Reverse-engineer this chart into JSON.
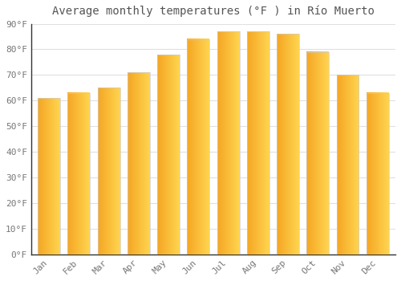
{
  "months": [
    "Jan",
    "Feb",
    "Mar",
    "Apr",
    "May",
    "Jun",
    "Jul",
    "Aug",
    "Sep",
    "Oct",
    "Nov",
    "Dec"
  ],
  "values": [
    61,
    63,
    65,
    71,
    78,
    84,
    87,
    87,
    86,
    79,
    70,
    63
  ],
  "bar_color_left": "#F5A623",
  "bar_color_right": "#FFD04E",
  "title": "Average monthly temperatures (°F ) in Río Muerto",
  "ylim": [
    0,
    90
  ],
  "yticks": [
    0,
    10,
    20,
    30,
    40,
    50,
    60,
    70,
    80,
    90
  ],
  "ytick_labels": [
    "0°F",
    "10°F",
    "20°F",
    "30°F",
    "40°F",
    "50°F",
    "60°F",
    "70°F",
    "80°F",
    "90°F"
  ],
  "background_color": "#ffffff",
  "grid_color": "#e0e0e0",
  "title_fontsize": 10,
  "tick_fontsize": 8,
  "bar_width": 0.75,
  "bar_edge_color": "#cccccc",
  "bar_edge_linewidth": 0.5
}
